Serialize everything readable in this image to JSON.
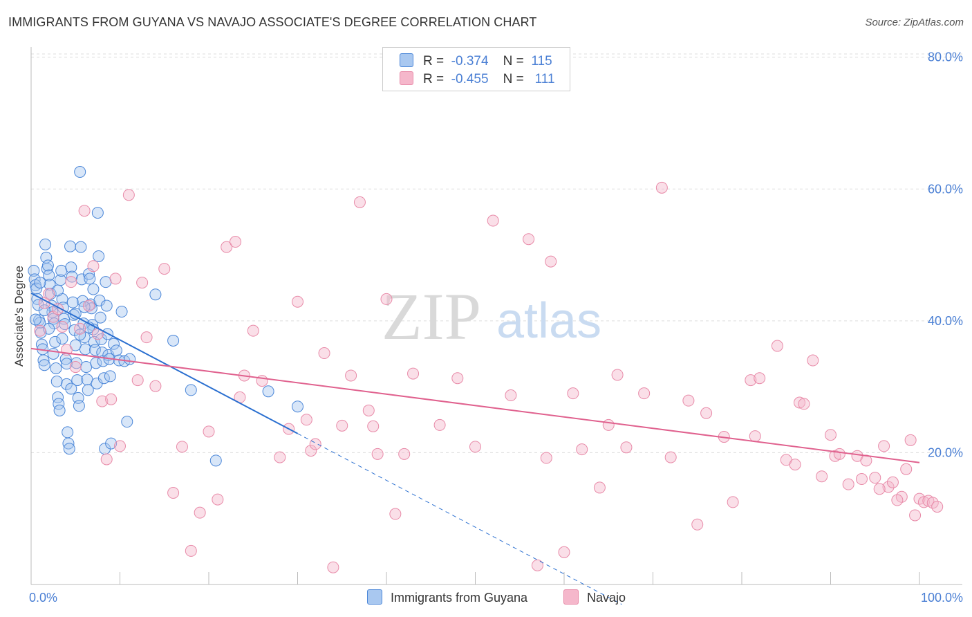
{
  "header": {
    "title": "IMMIGRANTS FROM GUYANA VS NAVAJO ASSOCIATE'S DEGREE CORRELATION CHART",
    "source": "Source: ZipAtlas.com"
  },
  "legend": {
    "rows": [
      {
        "r_label": "R =",
        "r_value": "-0.374",
        "n_label": "N =",
        "n_value": "115"
      },
      {
        "r_label": "R =",
        "r_value": "-0.455",
        "n_label": "N =",
        "n_value": "111"
      }
    ]
  },
  "bottom_legend": [
    {
      "label": "Immigrants from Guyana"
    },
    {
      "label": "Navajo"
    }
  ],
  "watermark": {
    "zip": "ZIP",
    "atlas": "atlas"
  },
  "colors": {
    "blue_fill": "#a9c8f0",
    "blue_stroke": "#4a86d8",
    "blue_line": "#2a6fd0",
    "pink_fill": "#f5b7cb",
    "pink_stroke": "#e88aa8",
    "pink_line": "#e0618e",
    "grid": "#dddddd",
    "tick_text": "#4a7fd4"
  },
  "chart_data": {
    "type": "scatter",
    "title": "IMMIGRANTS FROM GUYANA VS NAVAJO ASSOCIATE'S DEGREE CORRELATION CHART",
    "xlabel": "",
    "ylabel": "Associate's Degree",
    "xlim": [
      0,
      100
    ],
    "ylim": [
      0,
      82
    ],
    "y_ticks": [
      20,
      40,
      60,
      80
    ],
    "y_tick_labels": [
      "20.0%",
      "40.0%",
      "60.0%",
      "80.0%"
    ],
    "x_tick_labels": [
      "0.0%",
      "100.0%"
    ],
    "series": [
      {
        "name": "Immigrants from Guyana",
        "R": -0.374,
        "N": 115,
        "trend": {
          "x0": 0,
          "y0": 44.2,
          "x1": 30,
          "y1": 22.9,
          "dash_x_end": 66.5
        },
        "points": [
          [
            0.3,
            47.6
          ],
          [
            0.4,
            46.3
          ],
          [
            0.5,
            45.4
          ],
          [
            0.6,
            44.9
          ],
          [
            0.7,
            43.3
          ],
          [
            0.8,
            42.4
          ],
          [
            0.9,
            40.1
          ],
          [
            1.0,
            39.7
          ],
          [
            1.1,
            38.2
          ],
          [
            1.2,
            36.4
          ],
          [
            1.3,
            35.7
          ],
          [
            1.4,
            34.0
          ],
          [
            1.5,
            33.3
          ],
          [
            1.6,
            51.6
          ],
          [
            1.7,
            49.6
          ],
          [
            1.8,
            47.9
          ],
          [
            1.9,
            48.4
          ],
          [
            2.0,
            46.9
          ],
          [
            2.1,
            45.5
          ],
          [
            2.2,
            44.1
          ],
          [
            2.3,
            42.3
          ],
          [
            2.4,
            41.3
          ],
          [
            2.5,
            40.3
          ],
          [
            2.6,
            39.6
          ],
          [
            2.7,
            36.8
          ],
          [
            2.8,
            32.8
          ],
          [
            2.9,
            30.8
          ],
          [
            3.0,
            28.4
          ],
          [
            3.1,
            27.4
          ],
          [
            3.2,
            26.4
          ],
          [
            3.3,
            46.2
          ],
          [
            3.4,
            47.6
          ],
          [
            3.5,
            43.3
          ],
          [
            3.6,
            42.0
          ],
          [
            3.7,
            40.3
          ],
          [
            3.8,
            39.5
          ],
          [
            3.9,
            34.2
          ],
          [
            4.0,
            30.4
          ],
          [
            4.1,
            23.1
          ],
          [
            4.2,
            21.4
          ],
          [
            4.3,
            20.6
          ],
          [
            4.4,
            51.3
          ],
          [
            4.5,
            48.1
          ],
          [
            4.6,
            46.7
          ],
          [
            4.7,
            42.8
          ],
          [
            4.8,
            40.9
          ],
          [
            4.9,
            38.6
          ],
          [
            5.0,
            36.3
          ],
          [
            5.1,
            33.6
          ],
          [
            5.2,
            31.0
          ],
          [
            5.3,
            28.3
          ],
          [
            5.4,
            27.1
          ],
          [
            5.5,
            62.6
          ],
          [
            5.6,
            51.2
          ],
          [
            5.7,
            46.3
          ],
          [
            5.8,
            43.0
          ],
          [
            5.9,
            39.6
          ],
          [
            6.0,
            37.5
          ],
          [
            6.1,
            35.7
          ],
          [
            6.2,
            33.0
          ],
          [
            6.3,
            31.1
          ],
          [
            6.4,
            29.5
          ],
          [
            6.5,
            47.1
          ],
          [
            6.6,
            46.4
          ],
          [
            6.7,
            42.5
          ],
          [
            6.8,
            41.9
          ],
          [
            6.9,
            39.4
          ],
          [
            7.0,
            38.7
          ],
          [
            7.1,
            36.8
          ],
          [
            7.2,
            35.6
          ],
          [
            7.3,
            33.6
          ],
          [
            7.4,
            30.5
          ],
          [
            7.5,
            56.4
          ],
          [
            7.6,
            49.8
          ],
          [
            7.7,
            43.1
          ],
          [
            7.8,
            40.5
          ],
          [
            7.9,
            37.2
          ],
          [
            8.0,
            35.2
          ],
          [
            8.1,
            33.9
          ],
          [
            8.2,
            31.3
          ],
          [
            8.3,
            20.6
          ],
          [
            8.4,
            45.9
          ],
          [
            8.5,
            42.3
          ],
          [
            8.6,
            38.0
          ],
          [
            8.7,
            34.8
          ],
          [
            8.8,
            34.2
          ],
          [
            8.9,
            31.6
          ],
          [
            9.0,
            21.4
          ],
          [
            9.3,
            36.5
          ],
          [
            9.6,
            35.5
          ],
          [
            9.9,
            34.0
          ],
          [
            10.2,
            41.4
          ],
          [
            10.5,
            33.9
          ],
          [
            10.8,
            24.7
          ],
          [
            11.1,
            34.2
          ],
          [
            14.0,
            44.0
          ],
          [
            16.0,
            37.0
          ],
          [
            18.0,
            29.5
          ],
          [
            20.8,
            18.8
          ],
          [
            26.7,
            29.3
          ],
          [
            30.0,
            27.0
          ],
          [
            0.5,
            40.2
          ],
          [
            1.0,
            45.8
          ],
          [
            1.5,
            41.6
          ],
          [
            2.0,
            38.8
          ],
          [
            2.5,
            35.0
          ],
          [
            3.0,
            44.6
          ],
          [
            3.5,
            37.3
          ],
          [
            4.0,
            33.5
          ],
          [
            4.5,
            29.7
          ],
          [
            5.0,
            41.1
          ],
          [
            5.5,
            37.9
          ],
          [
            6.0,
            42.1
          ],
          [
            6.5,
            39.0
          ],
          [
            7.0,
            44.8
          ]
        ]
      },
      {
        "name": "Navajo",
        "R": -0.455,
        "N": 111,
        "trend": {
          "x0": 0,
          "y0": 35.8,
          "x1": 100,
          "y1": 18.5
        },
        "points": [
          [
            1.0,
            38.5
          ],
          [
            1.5,
            42.7
          ],
          [
            2.0,
            44.1
          ],
          [
            2.5,
            40.6
          ],
          [
            3.0,
            41.8
          ],
          [
            3.5,
            39.1
          ],
          [
            4.0,
            35.6
          ],
          [
            4.5,
            45.9
          ],
          [
            5.0,
            33.0
          ],
          [
            5.5,
            38.8
          ],
          [
            6.0,
            56.7
          ],
          [
            6.5,
            42.3
          ],
          [
            7.0,
            48.3
          ],
          [
            7.5,
            38.0
          ],
          [
            8.0,
            27.8
          ],
          [
            8.5,
            19.0
          ],
          [
            9.0,
            28.1
          ],
          [
            9.5,
            46.4
          ],
          [
            10.0,
            21.0
          ],
          [
            11.0,
            59.1
          ],
          [
            12.0,
            31.0
          ],
          [
            12.5,
            45.8
          ],
          [
            13.0,
            37.5
          ],
          [
            14.0,
            30.1
          ],
          [
            15.0,
            47.9
          ],
          [
            16.0,
            13.9
          ],
          [
            17.0,
            20.9
          ],
          [
            18.0,
            5.1
          ],
          [
            19.0,
            10.9
          ],
          [
            20.0,
            23.2
          ],
          [
            21.0,
            12.9
          ],
          [
            22.0,
            51.2
          ],
          [
            23.0,
            52.0
          ],
          [
            23.5,
            28.4
          ],
          [
            24.0,
            31.7
          ],
          [
            25.0,
            38.5
          ],
          [
            26.0,
            30.9
          ],
          [
            28.0,
            19.3
          ],
          [
            29.0,
            23.6
          ],
          [
            30.0,
            42.9
          ],
          [
            31.0,
            25.0
          ],
          [
            31.5,
            20.3
          ],
          [
            32.0,
            21.3
          ],
          [
            33.0,
            35.1
          ],
          [
            34.0,
            2.6
          ],
          [
            35.0,
            24.1
          ],
          [
            36.0,
            31.7
          ],
          [
            37.0,
            58.0
          ],
          [
            38.0,
            26.4
          ],
          [
            38.5,
            24.0
          ],
          [
            39.0,
            19.8
          ],
          [
            40.0,
            43.3
          ],
          [
            41.0,
            10.7
          ],
          [
            42.0,
            19.8
          ],
          [
            43.0,
            32.0
          ],
          [
            46.0,
            24.2
          ],
          [
            48.0,
            31.3
          ],
          [
            50.0,
            20.9
          ],
          [
            52.0,
            55.2
          ],
          [
            54.0,
            28.7
          ],
          [
            56.0,
            52.4
          ],
          [
            57.0,
            2.9
          ],
          [
            58.0,
            19.2
          ],
          [
            58.5,
            49.0
          ],
          [
            60.0,
            4.9
          ],
          [
            61.0,
            29.0
          ],
          [
            62.0,
            20.5
          ],
          [
            64.0,
            14.7
          ],
          [
            65.0,
            24.2
          ],
          [
            66.0,
            31.8
          ],
          [
            67.0,
            20.8
          ],
          [
            69.0,
            29.0
          ],
          [
            71.0,
            60.2
          ],
          [
            72.0,
            19.3
          ],
          [
            74.0,
            27.9
          ],
          [
            75.0,
            9.1
          ],
          [
            76.0,
            26.0
          ],
          [
            78.0,
            22.4
          ],
          [
            79.0,
            12.5
          ],
          [
            81.0,
            31.0
          ],
          [
            81.5,
            22.5
          ],
          [
            82.0,
            31.3
          ],
          [
            84.0,
            36.2
          ],
          [
            85.0,
            18.9
          ],
          [
            86.0,
            18.2
          ],
          [
            86.5,
            27.6
          ],
          [
            87.0,
            27.4
          ],
          [
            88.0,
            34.0
          ],
          [
            89.0,
            16.4
          ],
          [
            90.0,
            22.7
          ],
          [
            90.5,
            19.5
          ],
          [
            91.0,
            19.8
          ],
          [
            92.0,
            15.2
          ],
          [
            93.0,
            19.5
          ],
          [
            94.0,
            18.8
          ],
          [
            95.0,
            16.2
          ],
          [
            96.0,
            21.0
          ],
          [
            96.5,
            14.8
          ],
          [
            97.0,
            15.5
          ],
          [
            98.0,
            13.3
          ],
          [
            98.5,
            17.5
          ],
          [
            99.0,
            21.9
          ],
          [
            99.5,
            10.5
          ],
          [
            100.0,
            13.0
          ],
          [
            100.5,
            12.5
          ],
          [
            101.0,
            12.7
          ],
          [
            101.5,
            12.4
          ],
          [
            102.0,
            11.8
          ],
          [
            97.5,
            12.8
          ],
          [
            95.5,
            14.5
          ],
          [
            93.5,
            16.0
          ]
        ]
      }
    ]
  }
}
